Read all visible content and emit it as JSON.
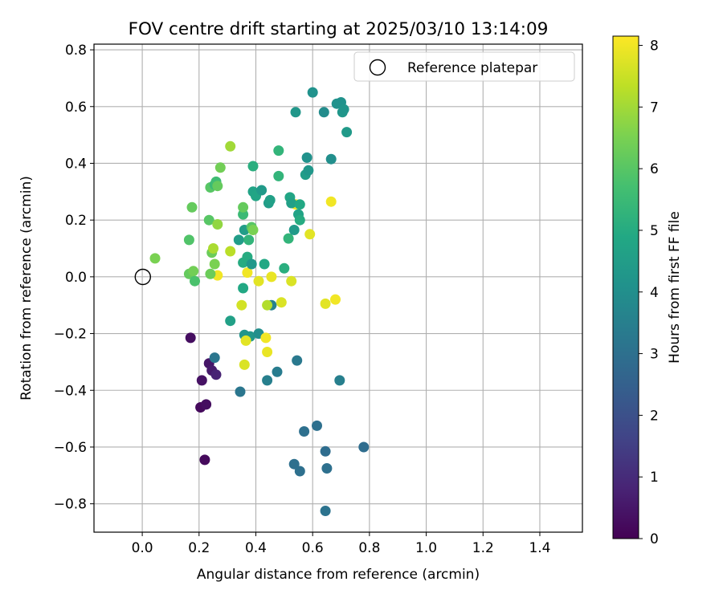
{
  "chart_data": {
    "type": "scatter",
    "title": "FOV centre drift starting at 2025/03/10 13:14:09",
    "xlabel": "Angular distance from reference (arcmin)",
    "ylabel": "Rotation from reference (arcmin)",
    "xlim": [
      -0.17,
      1.55
    ],
    "ylim": [
      -0.9,
      0.82
    ],
    "x_ticks": [
      0.0,
      0.2,
      0.4,
      0.6,
      0.8,
      1.0,
      1.2,
      1.4
    ],
    "x_tick_labels": [
      "0.0",
      "0.2",
      "0.4",
      "0.6",
      "0.8",
      "1.0",
      "1.2",
      "1.4"
    ],
    "y_ticks": [
      -0.8,
      -0.6,
      -0.4,
      -0.2,
      0.0,
      0.2,
      0.4,
      0.6,
      0.8
    ],
    "y_tick_labels": [
      "−0.8",
      "−0.6",
      "−0.4",
      "−0.2",
      "0.0",
      "0.2",
      "0.4",
      "0.6",
      "0.8"
    ],
    "grid": true,
    "legend": {
      "position": "upper right",
      "entries": [
        "Reference platepar"
      ]
    },
    "reference_point": {
      "x": 0.0,
      "y": 0.0,
      "label": "Reference platepar"
    },
    "colorbar": {
      "label": "Hours from first FF file",
      "colormap": "viridis",
      "range": [
        0,
        8.15
      ],
      "ticks": [
        0,
        1,
        2,
        3,
        4,
        5,
        6,
        7,
        8
      ],
      "tick_labels": [
        "0",
        "1",
        "2",
        "3",
        "4",
        "5",
        "6",
        "7",
        "8"
      ]
    },
    "point_columns": [
      "x",
      "y",
      "hours"
    ],
    "points": [
      [
        0.17,
        -0.215,
        0.3
      ],
      [
        0.21,
        -0.365,
        0.4
      ],
      [
        0.205,
        -0.46,
        0.2
      ],
      [
        0.225,
        -0.45,
        0.3
      ],
      [
        0.22,
        -0.645,
        0.2
      ],
      [
        0.235,
        -0.305,
        0.5
      ],
      [
        0.245,
        -0.33,
        0.6
      ],
      [
        0.26,
        -0.345,
        0.8
      ],
      [
        0.255,
        -0.285,
        3.2
      ],
      [
        0.345,
        -0.405,
        3.2
      ],
      [
        0.31,
        -0.155,
        4.6
      ],
      [
        0.36,
        -0.205,
        4.2
      ],
      [
        0.38,
        -0.21,
        4.3
      ],
      [
        0.41,
        -0.2,
        4.0
      ],
      [
        0.44,
        -0.365,
        3.5
      ],
      [
        0.475,
        -0.335,
        3.4
      ],
      [
        0.545,
        -0.295,
        3.3
      ],
      [
        0.455,
        -0.1,
        3.6
      ],
      [
        0.695,
        -0.365,
        3.5
      ],
      [
        0.57,
        -0.545,
        3.0
      ],
      [
        0.615,
        -0.525,
        3.0
      ],
      [
        0.645,
        -0.615,
        2.9
      ],
      [
        0.78,
        -0.6,
        2.9
      ],
      [
        0.535,
        -0.66,
        3.0
      ],
      [
        0.555,
        -0.685,
        3.0
      ],
      [
        0.65,
        -0.675,
        3.0
      ],
      [
        0.645,
        -0.825,
        3.1
      ],
      [
        0.36,
        -0.31,
        7.7
      ],
      [
        0.365,
        -0.225,
        7.8
      ],
      [
        0.435,
        -0.215,
        8.0
      ],
      [
        0.44,
        -0.265,
        7.9
      ],
      [
        0.35,
        -0.1,
        7.6
      ],
      [
        0.44,
        -0.1,
        7.2
      ],
      [
        0.49,
        -0.09,
        7.7
      ],
      [
        0.645,
        -0.095,
        7.8
      ],
      [
        0.68,
        -0.08,
        8.0
      ],
      [
        0.37,
        0.015,
        8.0
      ],
      [
        0.41,
        -0.015,
        7.8
      ],
      [
        0.455,
        0.0,
        7.9
      ],
      [
        0.525,
        -0.015,
        7.7
      ],
      [
        0.265,
        0.005,
        8.0
      ],
      [
        0.31,
        0.09,
        7.3
      ],
      [
        0.59,
        0.15,
        7.8
      ],
      [
        0.665,
        0.265,
        8.0
      ],
      [
        0.54,
        0.255,
        8.0
      ],
      [
        0.355,
        -0.04,
        4.9
      ],
      [
        0.355,
        0.05,
        5.0
      ],
      [
        0.37,
        0.07,
        5.0
      ],
      [
        0.385,
        0.045,
        4.3
      ],
      [
        0.43,
        0.045,
        4.9
      ],
      [
        0.5,
        0.03,
        5.1
      ],
      [
        0.34,
        0.13,
        4.5
      ],
      [
        0.36,
        0.165,
        4.5
      ],
      [
        0.375,
        0.13,
        5.3
      ],
      [
        0.385,
        0.175,
        6.0
      ],
      [
        0.39,
        0.165,
        6.5
      ],
      [
        0.355,
        0.22,
        5.5
      ],
      [
        0.355,
        0.245,
        6.2
      ],
      [
        0.39,
        0.3,
        4.7
      ],
      [
        0.4,
        0.285,
        4.8
      ],
      [
        0.42,
        0.305,
        4.4
      ],
      [
        0.39,
        0.39,
        5.1
      ],
      [
        0.445,
        0.26,
        4.5
      ],
      [
        0.45,
        0.27,
        4.6
      ],
      [
        0.48,
        0.355,
        5.3
      ],
      [
        0.48,
        0.445,
        5.3
      ],
      [
        0.515,
        0.135,
        5.3
      ],
      [
        0.52,
        0.28,
        4.8
      ],
      [
        0.525,
        0.26,
        4.6
      ],
      [
        0.535,
        0.165,
        4.4
      ],
      [
        0.55,
        0.22,
        4.7
      ],
      [
        0.555,
        0.2,
        5.0
      ],
      [
        0.555,
        0.255,
        4.9
      ],
      [
        0.575,
        0.36,
        4.5
      ],
      [
        0.585,
        0.375,
        4.3
      ],
      [
        0.58,
        0.42,
        4.1
      ],
      [
        0.54,
        0.58,
        4.3
      ],
      [
        0.6,
        0.65,
        4.1
      ],
      [
        0.64,
        0.58,
        3.9
      ],
      [
        0.665,
        0.415,
        4.0
      ],
      [
        0.685,
        0.61,
        4.1
      ],
      [
        0.7,
        0.615,
        4.1
      ],
      [
        0.705,
        0.58,
        4.3
      ],
      [
        0.71,
        0.59,
        4.2
      ],
      [
        0.72,
        0.51,
        4.4
      ],
      [
        0.165,
        0.01,
        6.2
      ],
      [
        0.18,
        0.02,
        6.4
      ],
      [
        0.185,
        -0.015,
        5.8
      ],
      [
        0.045,
        0.065,
        6.5
      ],
      [
        0.165,
        0.13,
        5.9
      ],
      [
        0.175,
        0.245,
        6.2
      ],
      [
        0.235,
        0.2,
        6.0
      ],
      [
        0.24,
        0.01,
        6.3
      ],
      [
        0.245,
        0.085,
        6.3
      ],
      [
        0.25,
        0.1,
        7.1
      ],
      [
        0.255,
        0.045,
        6.5
      ],
      [
        0.265,
        0.185,
        6.8
      ],
      [
        0.24,
        0.315,
        6.0
      ],
      [
        0.255,
        0.325,
        5.5
      ],
      [
        0.26,
        0.335,
        5.6
      ],
      [
        0.265,
        0.32,
        6.2
      ],
      [
        0.275,
        0.385,
        6.4
      ],
      [
        0.31,
        0.46,
        7.0
      ]
    ]
  }
}
